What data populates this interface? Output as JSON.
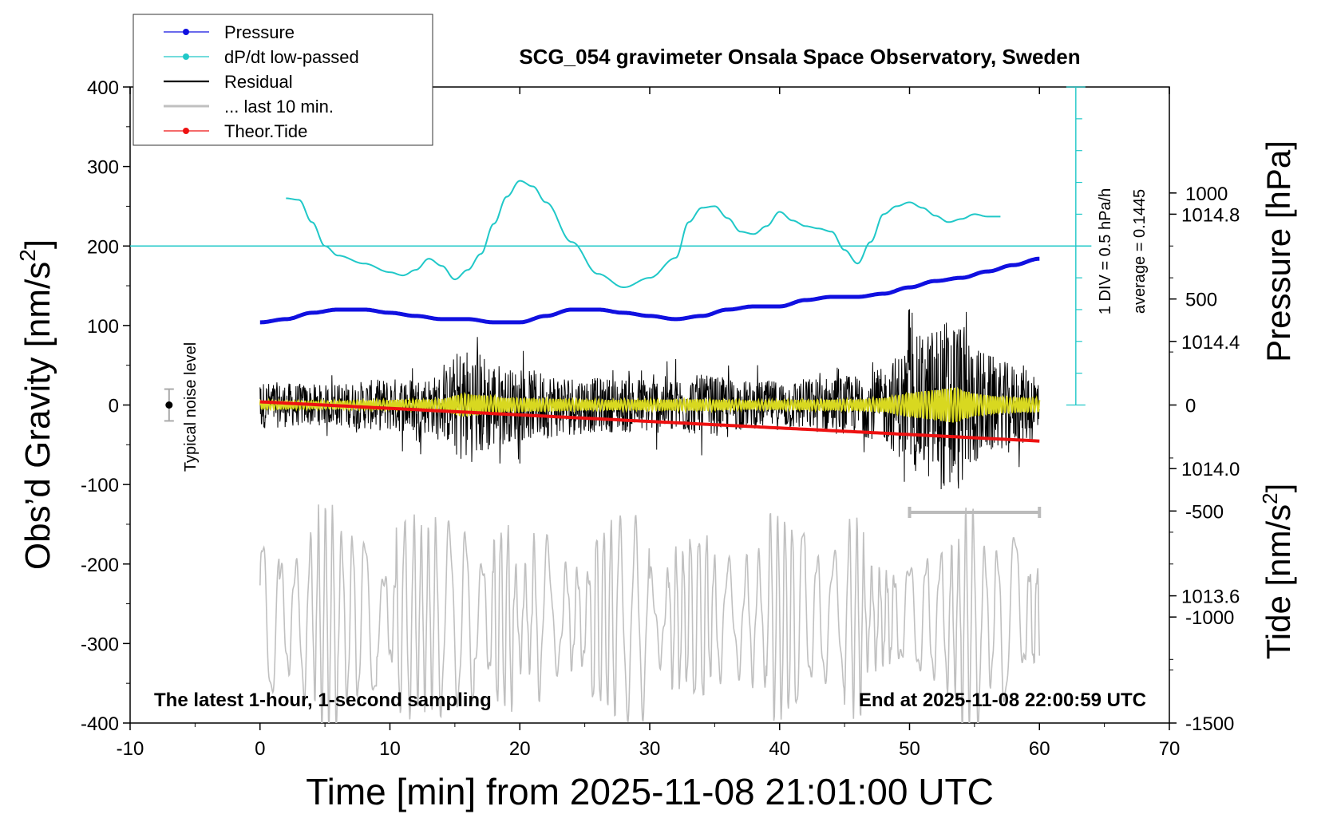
{
  "chart_data": {
    "type": "line",
    "title": "SCG_054 gravimeter Onsala Space Observatory, Sweden",
    "xlabel": "Time [min] from 2025-11-08 21:01:00 UTC",
    "ylabel_left": "Obs’d Gravity [nm/s",
    "ylabel_left_sup": "2",
    "ylabel_left_end": "]",
    "ylabel_right_pressure": "Pressure [hPa]",
    "ylabel_right_tide": "Tide [nm/s",
    "ylabel_right_tide_sup": "2",
    "ylabel_right_tide_end": "]",
    "xlim": [
      -10,
      70
    ],
    "ylim": [
      -400,
      400
    ],
    "x_ticks": [
      "-10",
      "0",
      "10",
      "20",
      "30",
      "40",
      "50",
      "60",
      "70"
    ],
    "y_ticks": [
      "400",
      "300",
      "200",
      "100",
      "0",
      "-100",
      "-200",
      "-300",
      "-400"
    ],
    "pressure_axis": {
      "range": [
        1013.2,
        1015.2
      ],
      "ticks": [
        "1014.8",
        "1014.4",
        "1014.0",
        "1013.6"
      ]
    },
    "tide_axis": {
      "range": [
        -1500,
        1500
      ],
      "ticks": [
        "1000",
        "500",
        "0",
        "-500",
        "-1000",
        "-1500"
      ]
    },
    "legend": {
      "placement": "top-left",
      "entries": [
        {
          "label": "Pressure",
          "color": "#1010e0",
          "style": "line-dot"
        },
        {
          "label": "dP/dt low-passed",
          "color": "#20c8c8",
          "style": "line-dot"
        },
        {
          "label": "Residual",
          "color": "#000000",
          "style": "line"
        },
        {
          "label": "... last 10 min.",
          "color": "#c0c0c0",
          "style": "line"
        },
        {
          "label": "Theor.Tide",
          "color": "#ee1111",
          "style": "line-dot"
        }
      ]
    },
    "pressure_series": {
      "x": [
        0,
        2,
        4,
        6,
        8,
        10,
        12,
        14,
        16,
        18,
        20,
        22,
        24,
        26,
        28,
        30,
        32,
        34,
        36,
        38,
        40,
        42,
        44,
        46,
        48,
        50,
        52,
        54,
        56,
        58,
        60
      ],
      "values": [
        1014.46,
        1014.47,
        1014.49,
        1014.5,
        1014.5,
        1014.49,
        1014.48,
        1014.47,
        1014.47,
        1014.46,
        1014.46,
        1014.48,
        1014.5,
        1014.5,
        1014.49,
        1014.48,
        1014.47,
        1014.48,
        1014.5,
        1014.51,
        1014.51,
        1014.53,
        1014.54,
        1014.54,
        1014.55,
        1014.57,
        1014.59,
        1014.6,
        1014.62,
        1014.64,
        1014.66
      ]
    },
    "dpdt_series": {
      "x": [
        2,
        3,
        4,
        5,
        6,
        8,
        10,
        11,
        12,
        13,
        14,
        15,
        16,
        17,
        18,
        19,
        20,
        21,
        22,
        24,
        26,
        28,
        30,
        32,
        33,
        34,
        35,
        36,
        37,
        38,
        39,
        40,
        41,
        42,
        43,
        44,
        45,
        46,
        47,
        48,
        49,
        50,
        51,
        52,
        53,
        54,
        55,
        56,
        57
      ],
      "values": [
        260,
        258,
        230,
        200,
        188,
        178,
        167,
        163,
        170,
        184,
        175,
        158,
        170,
        190,
        228,
        262,
        282,
        275,
        255,
        205,
        165,
        148,
        160,
        185,
        230,
        248,
        250,
        235,
        218,
        215,
        225,
        243,
        232,
        225,
        222,
        218,
        195,
        178,
        205,
        240,
        250,
        255,
        248,
        238,
        230,
        234,
        240,
        237,
        237
      ]
    },
    "dpdt_reference": {
      "value": 200,
      "label_div": "1 DIV = 0.5 hPa/h",
      "label_avg": "average = 0.1445"
    },
    "noise_level": {
      "x": -7,
      "value": 0,
      "half_range": 20,
      "label": "Typical noise level"
    },
    "residual_series": {
      "x_range": [
        0,
        60
      ],
      "baseline": 0,
      "envelope_x": [
        0,
        5,
        10,
        14,
        15.5,
        17,
        19,
        22,
        26,
        30,
        34,
        38,
        42,
        46,
        48,
        50,
        52,
        53.5,
        55,
        57,
        60
      ],
      "envelope_amp": [
        35,
        30,
        40,
        45,
        90,
        80,
        55,
        50,
        40,
        42,
        45,
        35,
        40,
        45,
        55,
        95,
        120,
        140,
        90,
        65,
        55
      ]
    },
    "last10_bar": {
      "x_range": [
        50,
        60
      ],
      "value": -135
    },
    "last10_series": {
      "x_range": [
        0,
        60
      ],
      "center": -268,
      "amplitude_range": [
        40,
        130
      ]
    },
    "tide_series": {
      "x": [
        0,
        60
      ],
      "values": [
        15,
        -170
      ]
    },
    "annotations": {
      "bottom_left": "The latest 1-hour, 1-second sampling",
      "bottom_right": "End at 2025-11-08 22:00:59 UTC"
    }
  }
}
